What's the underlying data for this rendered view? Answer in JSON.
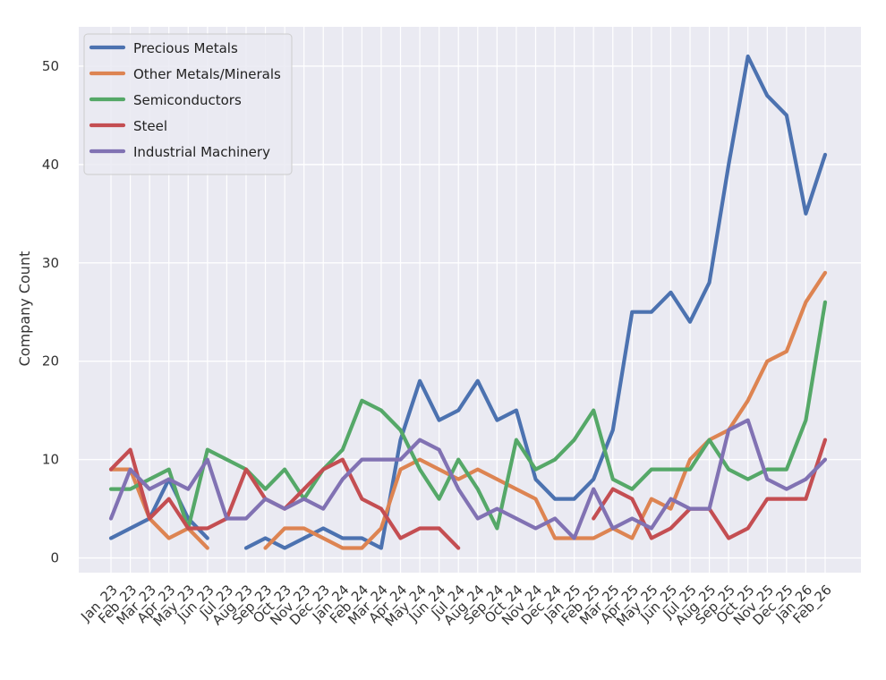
{
  "chart_data": {
    "type": "line",
    "title": "",
    "xlabel": "",
    "ylabel": "Company Count",
    "ylim": [
      -1.5,
      54
    ],
    "yticks": [
      0,
      10,
      20,
      30,
      40,
      50
    ],
    "grid": true,
    "legend_position": "top-left",
    "categories": [
      "Jan_23",
      "Feb_23",
      "Mar_23",
      "Apr_23",
      "May_23",
      "Jun_23",
      "Jul_23",
      "Aug_23",
      "Sep_23",
      "Oct_23",
      "Nov_23",
      "Dec_23",
      "Jan_24",
      "Feb_24",
      "Mar_24",
      "Apr_24",
      "May_24",
      "Jun_24",
      "Jul_24",
      "Aug_24",
      "Sep_24",
      "Oct_24",
      "Nov_24",
      "Dec_24",
      "Jan_25",
      "Feb_25",
      "Mar_25",
      "Apr_25",
      "May_25",
      "Jun_25",
      "Jul_25",
      "Aug_25",
      "Sep_25",
      "Oct_25",
      "Nov_25",
      "Dec_25",
      "Jan_26",
      "Feb_26"
    ],
    "series": [
      {
        "name": "Precious Metals",
        "color": "#4c72b0",
        "values": [
          2,
          3,
          4,
          8,
          4,
          2,
          null,
          1,
          2,
          1,
          2,
          3,
          2,
          2,
          1,
          12,
          18,
          14,
          15,
          18,
          14,
          15,
          8,
          6,
          6,
          8,
          13,
          25,
          25,
          27,
          24,
          28,
          40,
          51,
          47,
          45,
          35,
          41
        ]
      },
      {
        "name": "Other Metals/Minerals",
        "color": "#dd8452",
        "values": [
          9,
          9,
          4,
          2,
          3,
          1,
          null,
          null,
          1,
          3,
          3,
          2,
          1,
          1,
          3,
          9,
          10,
          9,
          8,
          9,
          8,
          7,
          6,
          2,
          2,
          2,
          3,
          2,
          6,
          5,
          10,
          12,
          13,
          16,
          20,
          21,
          26,
          29
        ]
      },
      {
        "name": "Semiconductors",
        "color": "#55a868",
        "values": [
          7,
          7,
          8,
          9,
          3,
          11,
          10,
          9,
          7,
          9,
          6,
          9,
          11,
          16,
          15,
          13,
          9,
          6,
          10,
          7,
          3,
          12,
          9,
          10,
          12,
          15,
          8,
          7,
          9,
          9,
          9,
          12,
          9,
          8,
          9,
          9,
          14,
          26
        ]
      },
      {
        "name": "Steel",
        "color": "#c44e52",
        "values": [
          9,
          11,
          4,
          6,
          3,
          3,
          4,
          9,
          6,
          5,
          7,
          9,
          10,
          6,
          5,
          2,
          3,
          3,
          1,
          null,
          null,
          null,
          null,
          null,
          null,
          4,
          7,
          6,
          2,
          3,
          5,
          5,
          2,
          3,
          6,
          6,
          6,
          12
        ]
      },
      {
        "name": "Industrial Machinery",
        "color": "#8172b3",
        "values": [
          4,
          9,
          7,
          8,
          7,
          10,
          4,
          4,
          6,
          5,
          6,
          5,
          8,
          10,
          10,
          10,
          12,
          11,
          7,
          4,
          5,
          4,
          3,
          4,
          2,
          7,
          3,
          4,
          3,
          6,
          5,
          5,
          13,
          14,
          8,
          7,
          8,
          10
        ]
      }
    ]
  }
}
